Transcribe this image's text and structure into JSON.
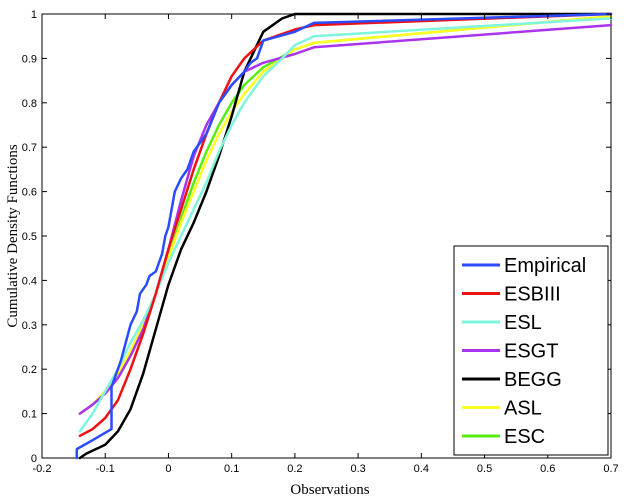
{
  "chart_data": {
    "type": "line",
    "title": "",
    "xlabel": "Observations",
    "ylabel": "Cumulative Density Functions",
    "xlim": [
      -0.2,
      0.7
    ],
    "ylim": [
      0,
      1
    ],
    "xticks": [
      "-0.2",
      "-0.1",
      "0",
      "0.1",
      "0.2",
      "0.3",
      "0.4",
      "0.5",
      "0.6",
      "0.7"
    ],
    "yticks": [
      "0",
      "0.1",
      "0.2",
      "0.3",
      "0.4",
      "0.5",
      "0.6",
      "0.7",
      "0.8",
      "0.9",
      "1"
    ],
    "legend_position": "bottom-right",
    "grid": false,
    "series": [
      {
        "name": "Empirical",
        "color": "#2b4bff",
        "x": [
          -0.145,
          -0.145,
          -0.12,
          -0.09,
          -0.09,
          -0.075,
          -0.06,
          -0.05,
          -0.045,
          -0.035,
          -0.03,
          -0.02,
          -0.01,
          -0.005,
          0,
          0.01,
          0.02,
          0.03,
          0.04,
          0.06,
          0.08,
          0.1,
          0.12,
          0.13,
          0.14,
          0.15,
          0.2,
          0.23,
          0.7
        ],
        "y": [
          0,
          0.02,
          0.04,
          0.065,
          0.16,
          0.22,
          0.3,
          0.33,
          0.37,
          0.39,
          0.41,
          0.42,
          0.46,
          0.5,
          0.52,
          0.6,
          0.63,
          0.65,
          0.69,
          0.73,
          0.8,
          0.84,
          0.87,
          0.89,
          0.9,
          0.94,
          0.96,
          0.98,
          1.0
        ]
      },
      {
        "name": "ESBIII",
        "color": "#ee1111",
        "x": [
          -0.14,
          -0.12,
          -0.1,
          -0.08,
          -0.06,
          -0.04,
          -0.02,
          0,
          0.02,
          0.04,
          0.06,
          0.08,
          0.1,
          0.12,
          0.15,
          0.2,
          0.23,
          0.7
        ],
        "y": [
          0.05,
          0.065,
          0.09,
          0.13,
          0.2,
          0.28,
          0.37,
          0.47,
          0.56,
          0.65,
          0.73,
          0.8,
          0.86,
          0.9,
          0.94,
          0.965,
          0.975,
          1.0
        ]
      },
      {
        "name": "ESL",
        "color": "#7ff5dd",
        "x": [
          -0.14,
          -0.12,
          -0.1,
          -0.08,
          -0.06,
          -0.04,
          -0.02,
          0,
          0.02,
          0.04,
          0.06,
          0.08,
          0.1,
          0.12,
          0.15,
          0.18,
          0.2,
          0.23,
          0.7
        ],
        "y": [
          0.06,
          0.1,
          0.15,
          0.2,
          0.26,
          0.31,
          0.37,
          0.44,
          0.5,
          0.56,
          0.62,
          0.69,
          0.75,
          0.8,
          0.86,
          0.9,
          0.93,
          0.95,
          0.99
        ]
      },
      {
        "name": "ESGT",
        "color": "#aa33ee",
        "x": [
          -0.14,
          -0.12,
          -0.1,
          -0.08,
          -0.06,
          -0.04,
          -0.02,
          0,
          0.02,
          0.04,
          0.06,
          0.08,
          0.1,
          0.12,
          0.15,
          0.2,
          0.23,
          0.7
        ],
        "y": [
          0.1,
          0.12,
          0.145,
          0.18,
          0.23,
          0.29,
          0.37,
          0.47,
          0.58,
          0.68,
          0.75,
          0.8,
          0.84,
          0.87,
          0.89,
          0.91,
          0.925,
          0.975
        ]
      },
      {
        "name": "BEGG",
        "color": "#000000",
        "x": [
          -0.14,
          -0.13,
          -0.1,
          -0.08,
          -0.06,
          -0.04,
          -0.02,
          0,
          0.02,
          0.04,
          0.06,
          0.08,
          0.1,
          0.12,
          0.15,
          0.18,
          0.2,
          0.7
        ],
        "y": [
          0,
          0.01,
          0.03,
          0.06,
          0.11,
          0.19,
          0.29,
          0.39,
          0.47,
          0.53,
          0.6,
          0.68,
          0.77,
          0.87,
          0.96,
          0.99,
          1.0,
          1.0
        ]
      },
      {
        "name": "ASL",
        "color": "#ffff22",
        "x": [
          -0.14,
          -0.12,
          -0.1,
          -0.08,
          -0.06,
          -0.04,
          -0.02,
          0,
          0.02,
          0.04,
          0.06,
          0.08,
          0.1,
          0.12,
          0.15,
          0.2,
          0.23,
          0.7
        ],
        "y": [
          0.1,
          0.12,
          0.15,
          0.19,
          0.24,
          0.3,
          0.37,
          0.45,
          0.53,
          0.6,
          0.67,
          0.73,
          0.78,
          0.82,
          0.87,
          0.92,
          0.935,
          0.995
        ]
      },
      {
        "name": "ESC",
        "color": "#55ee11",
        "x": [
          -0.14,
          -0.12,
          -0.1,
          -0.08,
          -0.06,
          -0.04,
          -0.02,
          0,
          0.02,
          0.04,
          0.06,
          0.08,
          0.1,
          0.12,
          0.15,
          0.2,
          0.23,
          0.7
        ],
        "y": [
          0.1,
          0.12,
          0.15,
          0.19,
          0.24,
          0.3,
          0.37,
          0.45,
          0.54,
          0.62,
          0.69,
          0.75,
          0.8,
          0.84,
          0.88,
          0.92,
          0.935,
          0.995
        ]
      }
    ]
  }
}
